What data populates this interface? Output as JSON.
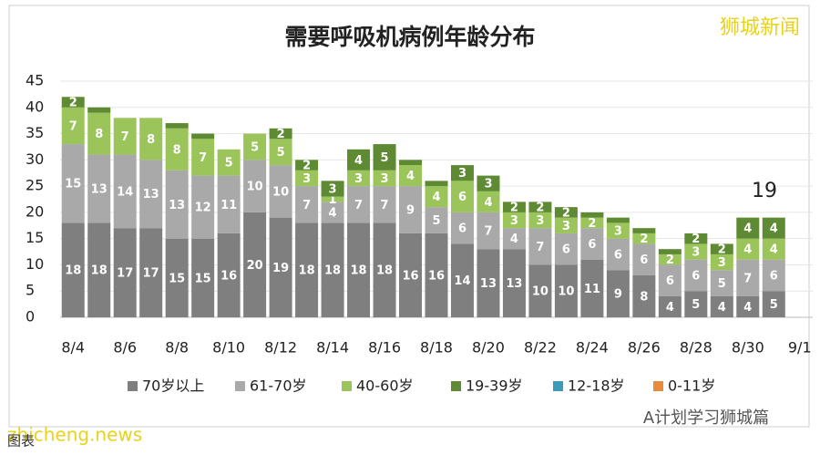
{
  "chart_data": {
    "type": "stacked_bar",
    "title": "需要呼吸机病例年龄分布",
    "annotation": "19",
    "watermarks": [
      "狮城新闻",
      "zhicheng.news",
      "A计划学习狮城篇",
      "图表"
    ],
    "categories": [
      "8/4",
      null,
      "8/6",
      null,
      "8/8",
      null,
      "8/10",
      null,
      "8/12",
      null,
      "8/14",
      null,
      "8/16",
      null,
      "8/18",
      null,
      "8/20",
      null,
      "8/22",
      null,
      "8/24",
      null,
      "8/26",
      null,
      "8/28",
      null,
      "8/30",
      null,
      "9/1"
    ],
    "series": [
      {
        "name": "70岁以上",
        "color": "#7f7f7f",
        "values": [
          18,
          18,
          17,
          17,
          15,
          15,
          16,
          20,
          19,
          18,
          18,
          18,
          18,
          16,
          16,
          14,
          13,
          13,
          10,
          10,
          11,
          9,
          8,
          4,
          5,
          4,
          4,
          5,
          null
        ]
      },
      {
        "name": "61-70岁",
        "color": "#a9a9a9",
        "values": [
          15,
          13,
          14,
          13,
          13,
          12,
          11,
          10,
          10,
          7,
          4,
          7,
          7,
          9,
          5,
          6,
          7,
          4,
          7,
          6,
          6,
          6,
          6,
          6,
          6,
          5,
          7,
          6,
          null
        ]
      },
      {
        "name": "40-60岁",
        "color": "#9bc45a",
        "values": [
          7,
          8,
          7,
          8,
          8,
          7,
          5,
          5,
          5,
          3,
          1,
          3,
          3,
          4,
          4,
          6,
          4,
          3,
          3,
          3,
          2,
          3,
          2,
          2,
          3,
          3,
          4,
          4,
          null
        ]
      },
      {
        "name": "19-39岁",
        "color": "#5f8a34",
        "values": [
          2,
          1,
          0,
          0,
          1,
          1,
          0,
          0,
          2,
          2,
          3,
          4,
          5,
          1,
          1,
          3,
          3,
          2,
          2,
          2,
          1,
          1,
          1,
          1,
          2,
          2,
          4,
          4,
          null
        ]
      },
      {
        "name": "12-18岁",
        "color": "#3a9bbb",
        "values": [
          0,
          0,
          0,
          0,
          0,
          0,
          0,
          0,
          0,
          0,
          0,
          0,
          0,
          0,
          0,
          0,
          0,
          0,
          0,
          0,
          0,
          0,
          0,
          0,
          0,
          0,
          0,
          0,
          null
        ]
      },
      {
        "name": "0-11岁",
        "color": "#e98a3c",
        "values": [
          0,
          0,
          0,
          0,
          0,
          0,
          0,
          0,
          0,
          0,
          0,
          0,
          0,
          0,
          0,
          0,
          0,
          0,
          0,
          0,
          0,
          0,
          0,
          0,
          0,
          0,
          0,
          0,
          null
        ]
      }
    ],
    "ylim": [
      0,
      45
    ],
    "yticks": [
      0,
      5,
      10,
      15,
      20,
      25,
      30,
      35,
      40,
      45
    ],
    "grid": true
  }
}
